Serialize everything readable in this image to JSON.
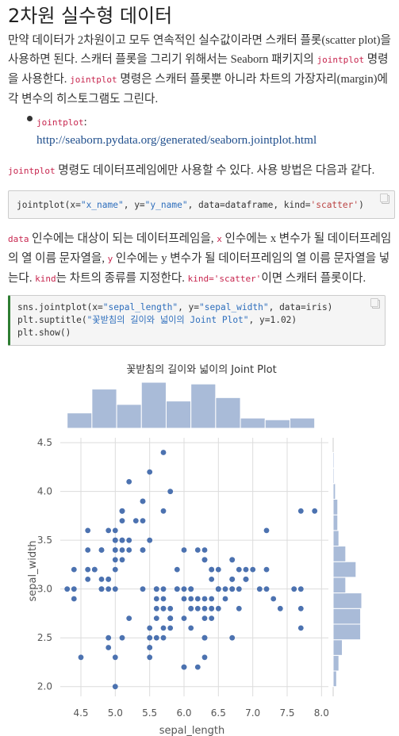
{
  "heading": "2차원 실수형 데이터",
  "intro": {
    "p1a": "만약 데이터가 2차원이고 모두 연속적인 실수값이라면 스캐터 플롯(scatter plot)을",
    "p1b_pre": "사용하면 된다. 스캐터 플롯을 그리기 위해서는 Seaborn 패키지의 ",
    "p1b_code": "jointplot",
    "p1b_post": " 명령",
    "p1c_pre": "을 사용한다. ",
    "p1c_code": "jointplot",
    "p1c_post": " 명령은 스캐터 플롯뿐 아니라 차트의 가장자리(margin)에",
    "p1d": "각 변수의 히스토그램도 그린다."
  },
  "list": {
    "item_code": "jointplot",
    "item_colon": ":",
    "link": "http://seaborn.pydata.org/generated/seaborn.jointplot.html"
  },
  "usage": {
    "code": "jointplot",
    "text": " 명령도 데이터프레임에만 사용할 수 있다. 사용 방법은 다음과 같다."
  },
  "code1": {
    "pre": "jointplot(x=",
    "s1": "\"x_name\"",
    "mid1": ", y=",
    "s2": "\"y_name\"",
    "mid2": ", data=dataframe, kind=",
    "s3": "'scatter'",
    "post": ")"
  },
  "args": {
    "c1": "data",
    "t1": " 인수에는 대상이 되는 데이터프레임을, ",
    "c2": "x",
    "t2": " 인수에는 x 변수가 될 데이터프레임",
    "t3": "의 열 이름 문자열을, ",
    "c3": "y",
    "t4": " 인수에는 y 변수가 될 데이터프레임의 열 이름 문자열을 넣",
    "t5": "는다. ",
    "c4": "kind",
    "t6": "는 차트의 종류를 지정한다. ",
    "c5": "kind='scatter'",
    "t7": "이면 스캐터 플롯이다."
  },
  "code2": {
    "l1a": "sns.jointplot(x=",
    "l1s1": "\"sepal_length\"",
    "l1b": ", y=",
    "l1s2": "\"sepal_width\"",
    "l1c": ", data=iris)",
    "l2a": "plt.suptitle(",
    "l2s": "\"꽃받침의 길이와 넓이의 Joint Plot\"",
    "l2b": ", y=1.02)",
    "l3": "plt.show()"
  },
  "colors": {
    "point": "#4c72b0",
    "hist": "#a9bbd8",
    "code_accent": "#c7254e",
    "link": "#1f4e8c"
  },
  "chart_data": {
    "type": "scatter",
    "title": "꽃받침의 길이와 넓이의 Joint Plot",
    "xlabel": "sepal_length",
    "ylabel": "sepal_width",
    "xlim": [
      4.2,
      8.1
    ],
    "ylim": [
      1.9,
      4.55
    ],
    "xticks": [
      "4.5",
      "5.0",
      "5.5",
      "6.0",
      "6.5",
      "7.0",
      "7.5",
      "8.0"
    ],
    "yticks": [
      "2.0",
      "2.5",
      "3.0",
      "3.5",
      "4.0",
      "4.5"
    ],
    "grid": true,
    "points": [
      [
        5.1,
        3.5
      ],
      [
        4.9,
        3.0
      ],
      [
        4.7,
        3.2
      ],
      [
        4.6,
        3.1
      ],
      [
        5.0,
        3.6
      ],
      [
        5.4,
        3.9
      ],
      [
        4.6,
        3.4
      ],
      [
        5.0,
        3.4
      ],
      [
        4.4,
        2.9
      ],
      [
        4.9,
        3.1
      ],
      [
        5.4,
        3.7
      ],
      [
        4.8,
        3.4
      ],
      [
        4.8,
        3.0
      ],
      [
        4.3,
        3.0
      ],
      [
        5.8,
        4.0
      ],
      [
        5.7,
        4.4
      ],
      [
        5.4,
        3.9
      ],
      [
        5.1,
        3.5
      ],
      [
        5.7,
        3.8
      ],
      [
        5.1,
        3.8
      ],
      [
        5.4,
        3.4
      ],
      [
        5.1,
        3.7
      ],
      [
        4.6,
        3.6
      ],
      [
        5.1,
        3.3
      ],
      [
        4.8,
        3.4
      ],
      [
        5.0,
        3.0
      ],
      [
        5.0,
        3.4
      ],
      [
        5.2,
        3.5
      ],
      [
        5.2,
        3.4
      ],
      [
        4.7,
        3.2
      ],
      [
        4.8,
        3.1
      ],
      [
        5.4,
        3.4
      ],
      [
        5.2,
        4.1
      ],
      [
        5.5,
        4.2
      ],
      [
        4.9,
        3.1
      ],
      [
        5.0,
        3.2
      ],
      [
        5.5,
        3.5
      ],
      [
        4.9,
        3.6
      ],
      [
        4.4,
        3.0
      ],
      [
        5.1,
        3.4
      ],
      [
        5.0,
        3.5
      ],
      [
        4.5,
        2.3
      ],
      [
        4.4,
        3.2
      ],
      [
        5.0,
        3.5
      ],
      [
        5.1,
        3.8
      ],
      [
        4.8,
        3.0
      ],
      [
        5.1,
        3.8
      ],
      [
        4.6,
        3.2
      ],
      [
        5.3,
        3.7
      ],
      [
        5.0,
        3.3
      ],
      [
        7.0,
        3.2
      ],
      [
        6.4,
        3.2
      ],
      [
        6.9,
        3.1
      ],
      [
        5.5,
        2.3
      ],
      [
        6.5,
        2.8
      ],
      [
        5.7,
        2.8
      ],
      [
        6.3,
        3.3
      ],
      [
        4.9,
        2.4
      ],
      [
        6.6,
        2.9
      ],
      [
        5.2,
        2.7
      ],
      [
        5.0,
        2.0
      ],
      [
        5.9,
        3.0
      ],
      [
        6.0,
        2.2
      ],
      [
        6.1,
        2.9
      ],
      [
        5.6,
        2.9
      ],
      [
        6.7,
        3.1
      ],
      [
        5.6,
        3.0
      ],
      [
        5.8,
        2.7
      ],
      [
        6.2,
        2.2
      ],
      [
        5.6,
        2.5
      ],
      [
        5.9,
        3.2
      ],
      [
        6.1,
        2.8
      ],
      [
        6.3,
        2.5
      ],
      [
        6.1,
        2.8
      ],
      [
        6.4,
        2.9
      ],
      [
        6.6,
        3.0
      ],
      [
        6.8,
        2.8
      ],
      [
        6.7,
        3.0
      ],
      [
        6.0,
        2.9
      ],
      [
        5.7,
        2.6
      ],
      [
        5.5,
        2.4
      ],
      [
        5.5,
        2.4
      ],
      [
        5.8,
        2.7
      ],
      [
        6.0,
        2.7
      ],
      [
        5.4,
        3.0
      ],
      [
        6.0,
        3.4
      ],
      [
        6.7,
        3.1
      ],
      [
        6.3,
        2.3
      ],
      [
        5.6,
        3.0
      ],
      [
        5.5,
        2.5
      ],
      [
        5.5,
        2.6
      ],
      [
        6.1,
        3.0
      ],
      [
        5.8,
        2.6
      ],
      [
        5.0,
        2.3
      ],
      [
        5.6,
        2.7
      ],
      [
        5.7,
        3.0
      ],
      [
        5.7,
        2.9
      ],
      [
        6.2,
        2.9
      ],
      [
        5.1,
        2.5
      ],
      [
        5.7,
        2.8
      ],
      [
        6.3,
        3.3
      ],
      [
        5.8,
        2.7
      ],
      [
        7.1,
        3.0
      ],
      [
        6.3,
        2.9
      ],
      [
        6.5,
        3.0
      ],
      [
        7.6,
        3.0
      ],
      [
        4.9,
        2.5
      ],
      [
        7.3,
        2.9
      ],
      [
        6.7,
        2.5
      ],
      [
        7.2,
        3.6
      ],
      [
        6.5,
        3.2
      ],
      [
        6.4,
        2.7
      ],
      [
        6.8,
        3.0
      ],
      [
        5.7,
        2.5
      ],
      [
        5.8,
        2.8
      ],
      [
        6.4,
        3.2
      ],
      [
        6.5,
        3.0
      ],
      [
        7.7,
        3.8
      ],
      [
        7.7,
        2.6
      ],
      [
        6.0,
        2.2
      ],
      [
        6.9,
        3.2
      ],
      [
        5.6,
        2.8
      ],
      [
        7.7,
        2.8
      ],
      [
        6.3,
        2.7
      ],
      [
        6.7,
        3.3
      ],
      [
        7.2,
        3.2
      ],
      [
        6.2,
        2.8
      ],
      [
        6.1,
        3.0
      ],
      [
        6.4,
        2.8
      ],
      [
        7.2,
        3.0
      ],
      [
        7.4,
        2.8
      ],
      [
        7.9,
        3.8
      ],
      [
        6.4,
        2.8
      ],
      [
        6.3,
        2.8
      ],
      [
        6.1,
        2.6
      ],
      [
        7.7,
        3.0
      ],
      [
        6.3,
        3.4
      ],
      [
        6.4,
        3.1
      ],
      [
        6.0,
        3.0
      ],
      [
        6.9,
        3.1
      ],
      [
        6.7,
        3.1
      ],
      [
        6.9,
        3.1
      ],
      [
        5.8,
        2.7
      ],
      [
        6.8,
        3.2
      ],
      [
        6.7,
        3.3
      ],
      [
        6.7,
        3.0
      ],
      [
        6.3,
        2.5
      ],
      [
        6.5,
        3.0
      ],
      [
        6.2,
        3.4
      ],
      [
        5.9,
        3.0
      ]
    ],
    "hist_x_counts": [
      9,
      23,
      14,
      27,
      16,
      26,
      18,
      6,
      5,
      6
    ],
    "hist_y_counts": [
      3,
      5,
      8,
      24,
      24,
      25,
      11,
      20,
      11,
      5,
      4,
      4,
      2,
      1,
      1
    ]
  }
}
